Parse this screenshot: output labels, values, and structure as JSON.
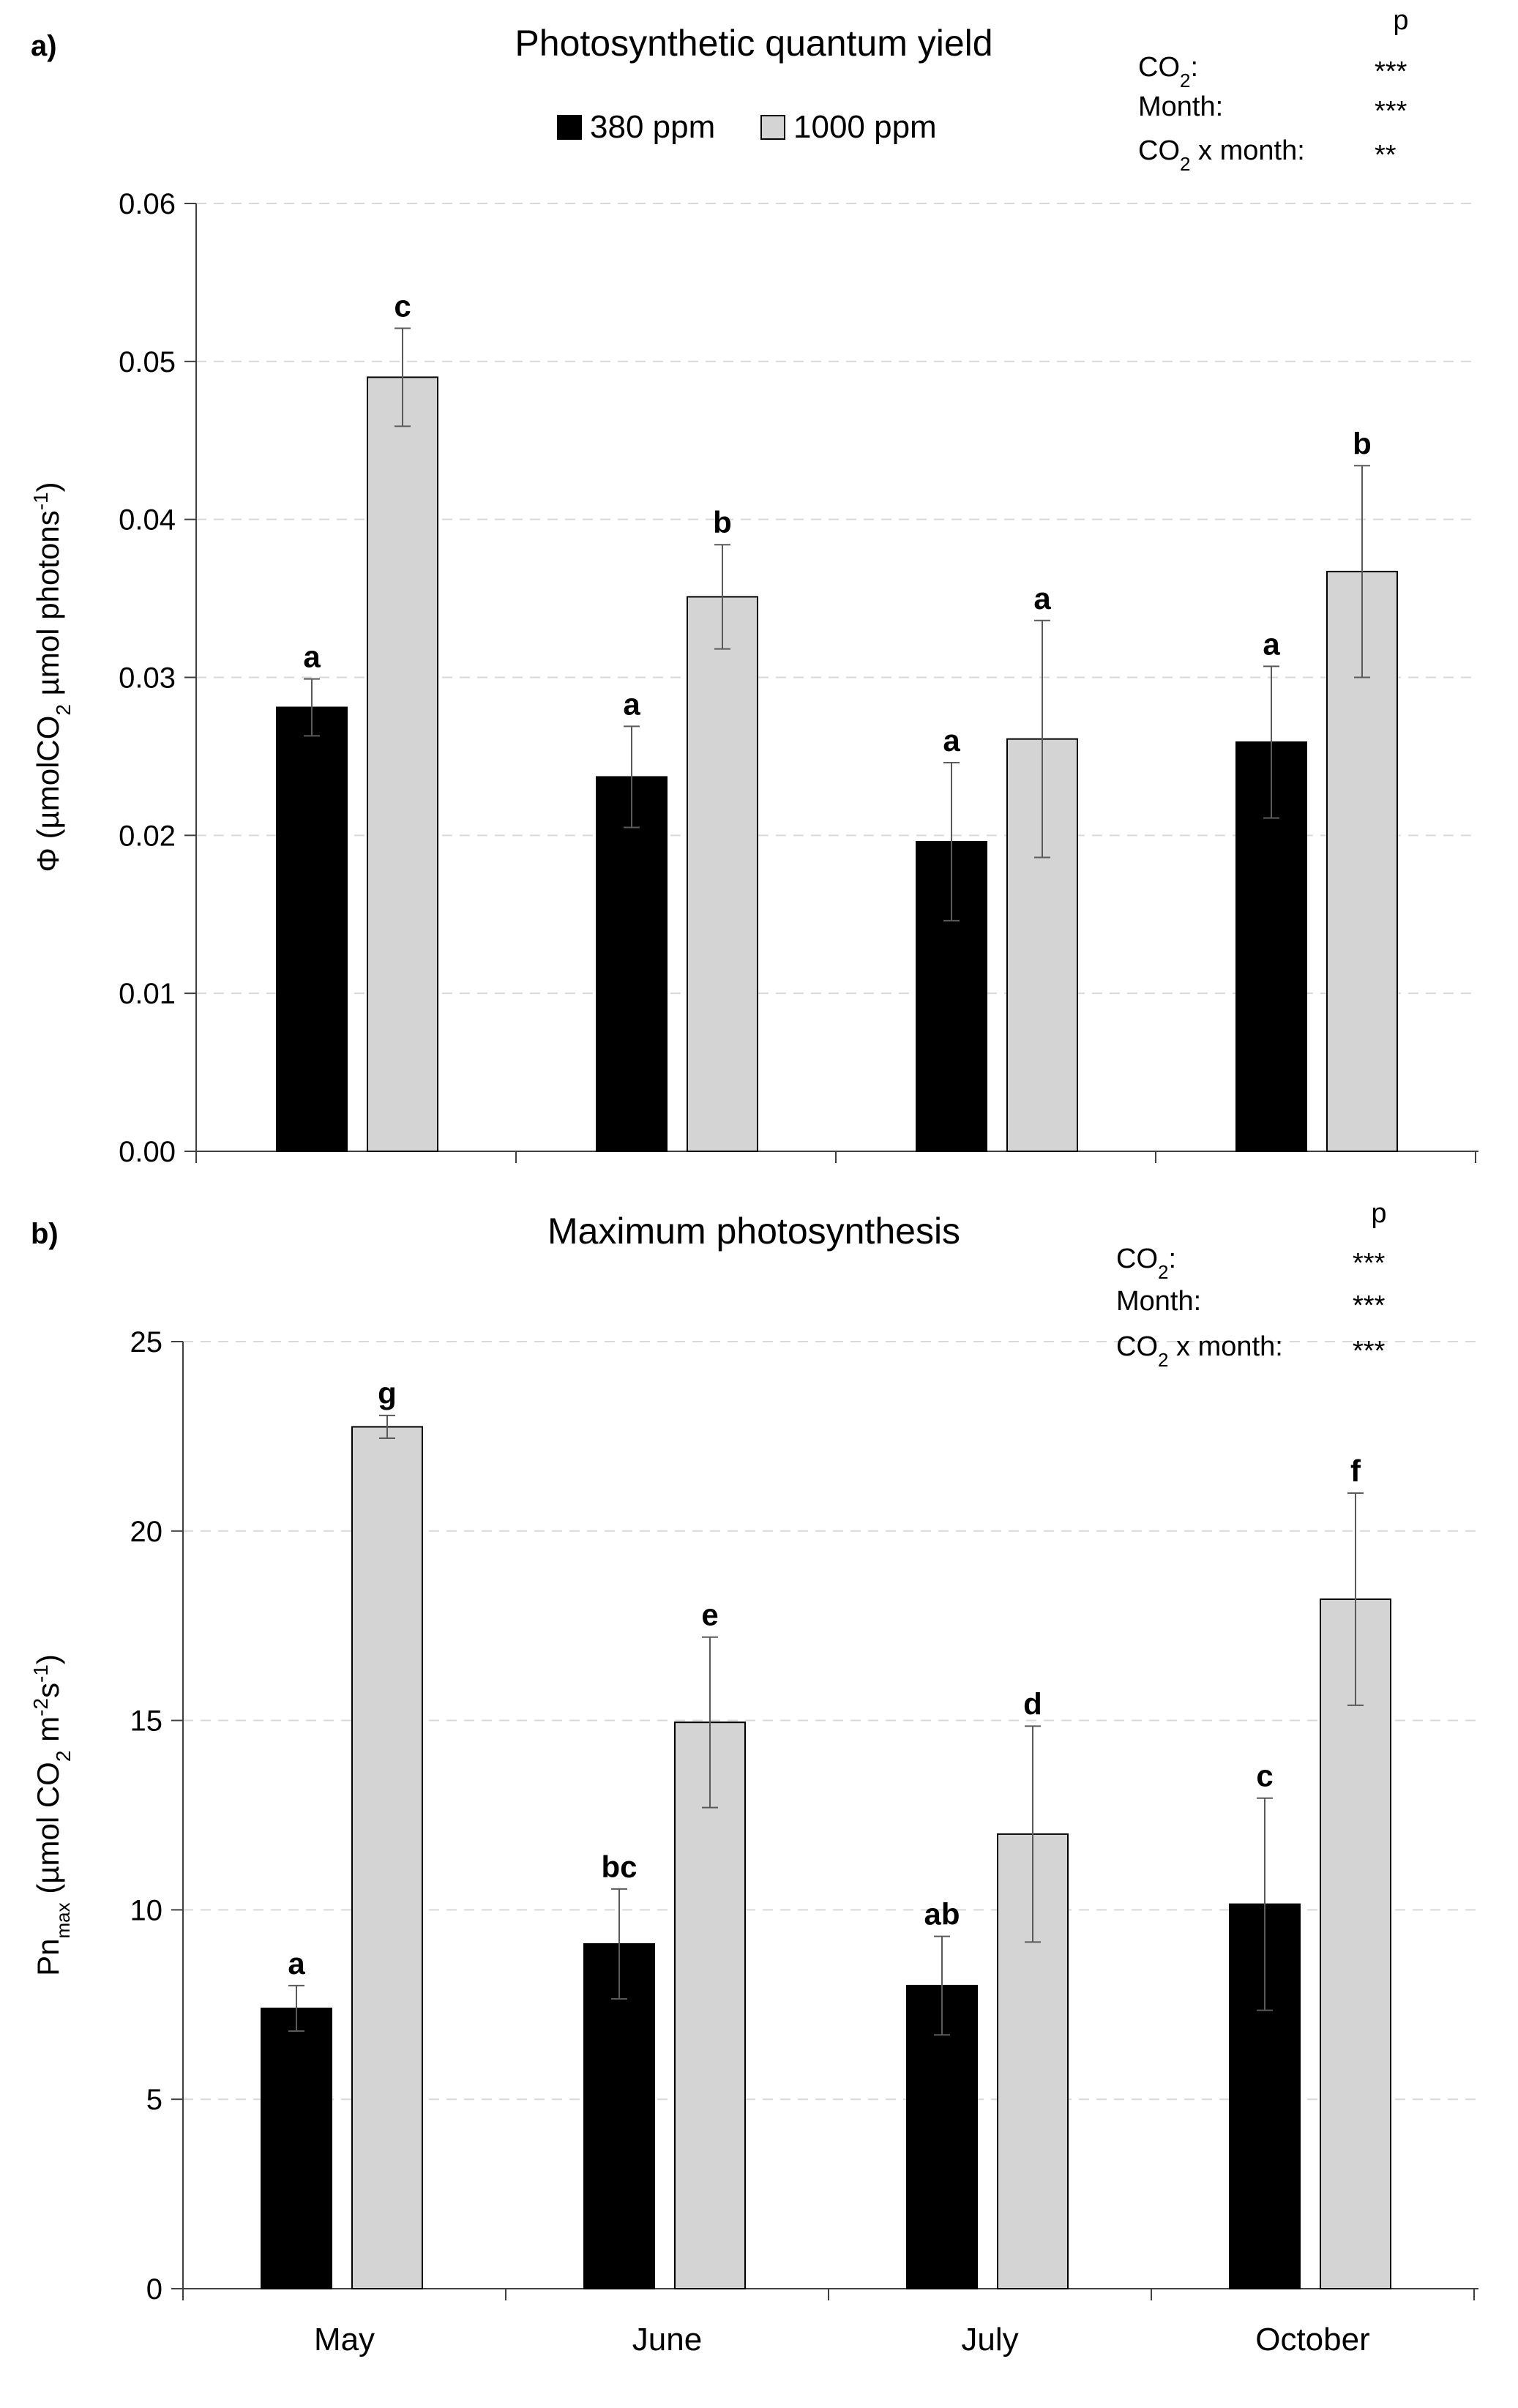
{
  "chart_data": [
    {
      "panel": "a)",
      "type": "bar",
      "title": "Photosynthetic quantum yield",
      "ylabel": {
        "pre": "Φ (µmolCO",
        "sub": "2",
        "mid": " µmol photons",
        "sup": "-1",
        "post": ")"
      },
      "ylim": [
        0,
        0.06
      ],
      "yticks": [
        "0.00",
        "0.01",
        "0.02",
        "0.03",
        "0.04",
        "0.05",
        "0.06"
      ],
      "grid": true,
      "categories": [
        "May",
        "June",
        "July",
        "October"
      ],
      "show_category_labels": false,
      "legend": {
        "placement": "top",
        "entries": [
          "380 ppm",
          "1000 ppm"
        ]
      },
      "series": [
        {
          "name": "380 ppm",
          "color": "#000000",
          "values": [
            0.0281,
            0.0237,
            0.0196,
            0.0259
          ],
          "errors": [
            0.0018,
            0.0032,
            0.005,
            0.0048
          ],
          "letters": [
            "a",
            "a",
            "a",
            "a"
          ]
        },
        {
          "name": "1000 ppm",
          "color": "#d4d4d4",
          "values": [
            0.049,
            0.0351,
            0.0261,
            0.0367
          ],
          "errors": [
            0.0031,
            0.0033,
            0.0075,
            0.0067
          ],
          "letters": [
            "c",
            "b",
            "a",
            "b"
          ]
        }
      ],
      "stats": {
        "header": "p",
        "rows": [
          {
            "pre": "CO",
            "sub": "2",
            "post": ":",
            "value": "***"
          },
          {
            "pre": "Month:",
            "sub": "",
            "post": "",
            "value": "***"
          },
          {
            "pre": "CO",
            "sub": "2",
            "post": " x month:",
            "value": "**"
          }
        ]
      }
    },
    {
      "panel": "b)",
      "type": "bar",
      "title": "Maximum photosynthesis",
      "ylabel": {
        "pre": "Pn",
        "sub1": "max",
        "mid": " (µmol CO",
        "sub2": "2",
        "mid2": " m",
        "sup1": "-2",
        "mid3": "s",
        "sup2": "-1",
        "post": ")"
      },
      "ylim": [
        0,
        25
      ],
      "yticks": [
        "0",
        "5",
        "10",
        "15",
        "20",
        "25"
      ],
      "grid": true,
      "categories": [
        "May",
        "June",
        "July",
        "October"
      ],
      "show_category_labels": true,
      "series": [
        {
          "name": "380 ppm",
          "color": "#000000",
          "values": [
            7.4,
            9.1,
            8.0,
            10.15
          ],
          "errors": [
            0.6,
            1.45,
            1.3,
            2.8
          ],
          "letters": [
            "a",
            "bc",
            "ab",
            "c"
          ]
        },
        {
          "name": "1000 ppm",
          "color": "#d4d4d4",
          "values": [
            22.75,
            14.95,
            12.0,
            18.2
          ],
          "errors": [
            0.3,
            2.25,
            2.85,
            2.8
          ],
          "letters": [
            "g",
            "e",
            "d",
            "f"
          ]
        }
      ],
      "stats": {
        "header": "p",
        "rows": [
          {
            "pre": "CO",
            "sub": "2",
            "post": ":",
            "value": "***"
          },
          {
            "pre": "Month:",
            "sub": "",
            "post": "",
            "value": "***"
          },
          {
            "pre": "CO",
            "sub": "2",
            "post": " x month:",
            "value": "***"
          }
        ]
      }
    }
  ]
}
